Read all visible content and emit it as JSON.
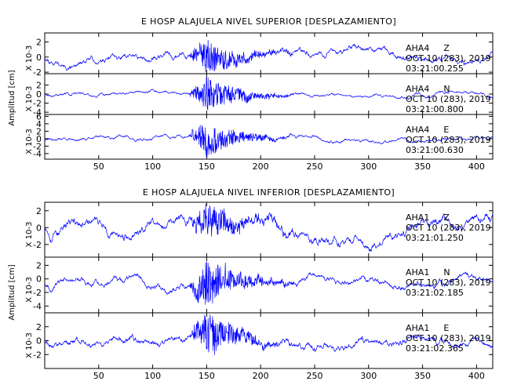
{
  "colors": {
    "trace": "#0000ff",
    "axes": "#000000",
    "background": "#ffffff"
  },
  "chart_data": [
    {
      "type": "line",
      "title": "E HOSP ALAJUELA NIVEL SUPERIOR [DESPLAZAMIENTO]",
      "ylabel": "Amplitud [cm]",
      "xlim": [
        0,
        415
      ],
      "xticks": [
        50,
        100,
        150,
        200,
        250,
        300,
        350,
        400
      ],
      "xtick_labels": [
        "50",
        "100",
        "150",
        "200",
        "250",
        "300",
        "350",
        "400"
      ],
      "grid": false,
      "traces": [
        {
          "station": "AHA4",
          "component": "Z",
          "date": "OCT 10 (283), 2019",
          "time": "03:21:00.255",
          "scale": "X 10-3",
          "ylim": [
            -2.2,
            3.2
          ],
          "yticks": [
            -2,
            0,
            2
          ],
          "ytick_labels": [
            "-2",
            "0",
            "2"
          ],
          "baseline": 0,
          "strong_amplitude": 2.4,
          "noise_amplitude": 0.35,
          "seed": 11
        },
        {
          "station": "AHA4",
          "component": "N",
          "date": "OCT 10 (283), 2019",
          "time": "03:21:00.800",
          "scale": "X 10-3",
          "ylim": [
            -4.5,
            4.5
          ],
          "yticks": [
            -4,
            -2,
            0,
            2
          ],
          "ytick_labels": [
            "-4",
            "-2",
            "0",
            "2"
          ],
          "baseline": 0,
          "strong_amplitude": 4.0,
          "noise_amplitude": 0.3,
          "seed": 23
        },
        {
          "station": "AHA4",
          "component": "E",
          "date": "OCT 10 (283), 2019",
          "time": "03:21:00.630",
          "scale": "X 10-3",
          "ylim": [
            -5.5,
            6.5
          ],
          "yticks": [
            -4,
            -2,
            0,
            2,
            4,
            6
          ],
          "ytick_labels": [
            "-4",
            "-2",
            "0",
            "2",
            "4",
            "6"
          ],
          "baseline": 0,
          "strong_amplitude": 4.8,
          "noise_amplitude": 0.4,
          "seed": 37
        }
      ]
    },
    {
      "type": "line",
      "title": "E HOSP ALAJUELA NIVEL INFERIOR [DESPLAZAMIENTO]",
      "ylabel": "Amplitud [cm]",
      "xlim": [
        0,
        415
      ],
      "xticks": [
        50,
        100,
        150,
        200,
        250,
        300,
        350,
        400
      ],
      "xtick_labels": [
        "50",
        "100",
        "150",
        "200",
        "250",
        "300",
        "350",
        "400"
      ],
      "grid": false,
      "traces": [
        {
          "station": "AHA1",
          "component": "Z",
          "date": "OCT 10 (283), 2019",
          "time": "03:21:01.250",
          "scale": "X 10-3",
          "ylim": [
            -3.5,
            3.0
          ],
          "yticks": [
            -2,
            0,
            2
          ],
          "ytick_labels": [
            "-2",
            "0",
            "2"
          ],
          "baseline": 0,
          "strong_amplitude": 2.2,
          "noise_amplitude": 0.5,
          "seed": 53
        },
        {
          "station": "AHA1",
          "component": "N",
          "date": "OCT 10 (283), 2019",
          "time": "03:21:02.185",
          "scale": "X 10-3",
          "ylim": [
            -5.0,
            3.2
          ],
          "yticks": [
            -4,
            -2,
            0,
            2
          ],
          "ytick_labels": [
            "-4",
            "-2",
            "0",
            "2"
          ],
          "baseline": -0.5,
          "strong_amplitude": 3.5,
          "noise_amplitude": 0.4,
          "seed": 67
        },
        {
          "station": "AHA1",
          "component": "E",
          "date": "OCT 10 (283), 2019",
          "time": "03:21:02.365",
          "scale": "X 10-3",
          "ylim": [
            -4.0,
            4.0
          ],
          "yticks": [
            -2,
            0,
            2
          ],
          "ytick_labels": [
            "-2",
            "0",
            "2"
          ],
          "baseline": 0,
          "strong_amplitude": 3.3,
          "noise_amplitude": 0.45,
          "seed": 79
        }
      ]
    }
  ]
}
